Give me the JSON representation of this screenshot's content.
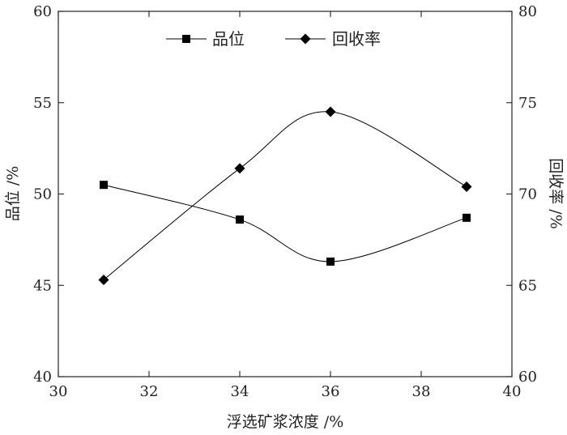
{
  "chart_data": {
    "type": "line",
    "xlabel": "浮选矿浆浓度 /%",
    "ylabel_left": "品位 /%",
    "ylabel_right": "回收率 /%",
    "xlim": [
      30,
      40
    ],
    "ylim_left": [
      40,
      60
    ],
    "ylim_right": [
      60,
      80
    ],
    "xticks": [
      30,
      32,
      34,
      36,
      38,
      40
    ],
    "yticks_left": [
      40,
      45,
      50,
      55,
      60
    ],
    "yticks_right": [
      60,
      65,
      70,
      75,
      80
    ],
    "grid": false,
    "legend_position": "top-center",
    "series": [
      {
        "name": "品位",
        "axis": "left",
        "marker": "square",
        "color": "#000000",
        "x": [
          31,
          34,
          36,
          39
        ],
        "y": [
          50.5,
          48.6,
          46.3,
          48.7
        ]
      },
      {
        "name": "回收率",
        "axis": "right",
        "marker": "diamond",
        "color": "#000000",
        "x": [
          31,
          34,
          36,
          39
        ],
        "y": [
          65.3,
          71.4,
          74.5,
          70.4
        ]
      }
    ]
  }
}
